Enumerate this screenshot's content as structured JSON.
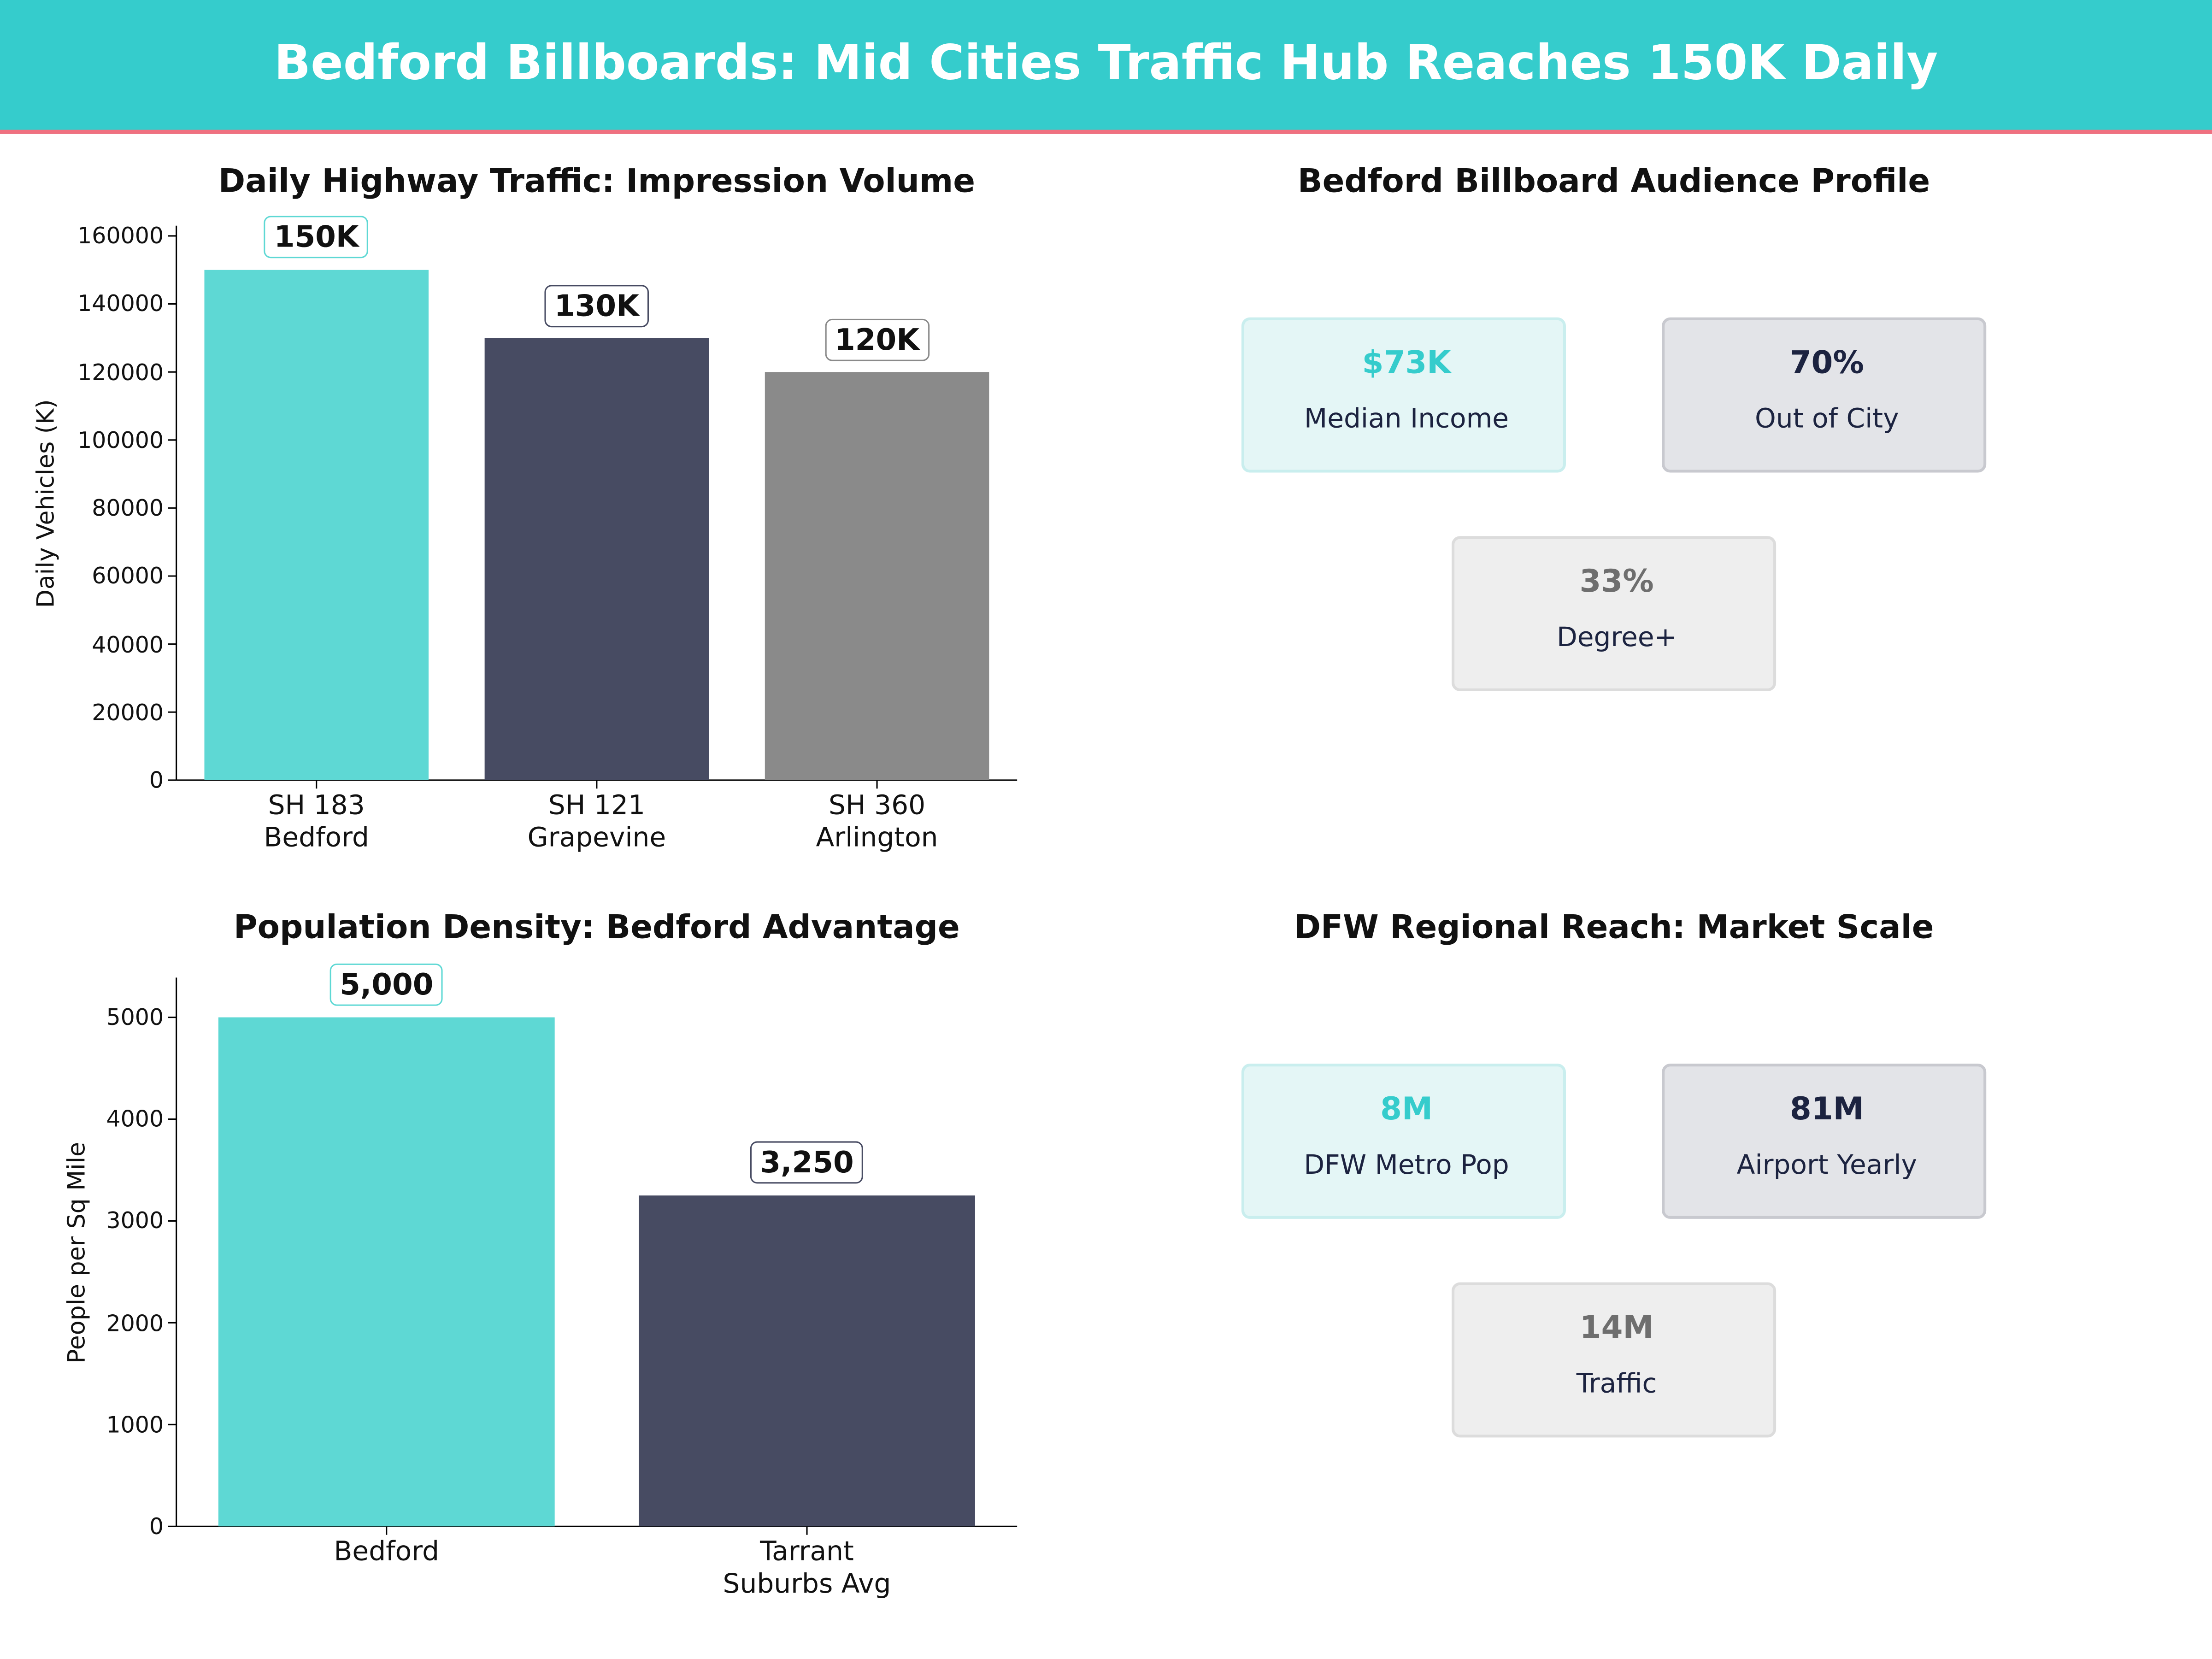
{
  "header": {
    "title": "Bedford Billboards: Mid Cities Traffic Hub Reaches 150K Daily"
  },
  "chart_data": [
    {
      "type": "bar",
      "title": "Daily Highway Traffic: Impression Volume",
      "y_label": "Daily Vehicles (K)",
      "categories": [
        "SH 183\nBedford",
        "SH 121\nGrapevine",
        "SH 360\nArlington"
      ],
      "values": [
        150000,
        130000,
        120000
      ],
      "value_labels": [
        "150K",
        "130K",
        "120K"
      ],
      "colors": [
        "#5ed8d4",
        "#474b62",
        "#8a8a8a"
      ],
      "ylim": [
        0,
        163000
      ],
      "yticks": [
        0,
        20000,
        40000,
        60000,
        80000,
        100000,
        120000,
        140000,
        160000
      ]
    },
    {
      "type": "bar",
      "title": "Population Density: Bedford Advantage",
      "y_label": "People per Sq Mile",
      "categories": [
        "Bedford",
        "Tarrant\nSuburbs Avg"
      ],
      "values": [
        5000,
        3250
      ],
      "value_labels": [
        "5,000",
        "3,250"
      ],
      "colors": [
        "#5ed8d4",
        "#474b62"
      ],
      "ylim": [
        0,
        5390
      ],
      "yticks": [
        0,
        1000,
        2000,
        3000,
        4000,
        5000
      ]
    }
  ],
  "cards": [
    {
      "title": "Bedford Billboard Audience Profile",
      "items": [
        {
          "value": "$73K",
          "label": "Median Income"
        },
        {
          "value": "70%",
          "label": "Out of City"
        },
        {
          "value": "33%",
          "label": "Degree+"
        }
      ]
    },
    {
      "title": "DFW Regional Reach: Market Scale",
      "items": [
        {
          "value": "8M",
          "label": "DFW Metro Pop"
        },
        {
          "value": "81M",
          "label": "Airport Yearly"
        },
        {
          "value": "14M",
          "label": "Traffic"
        }
      ]
    }
  ]
}
